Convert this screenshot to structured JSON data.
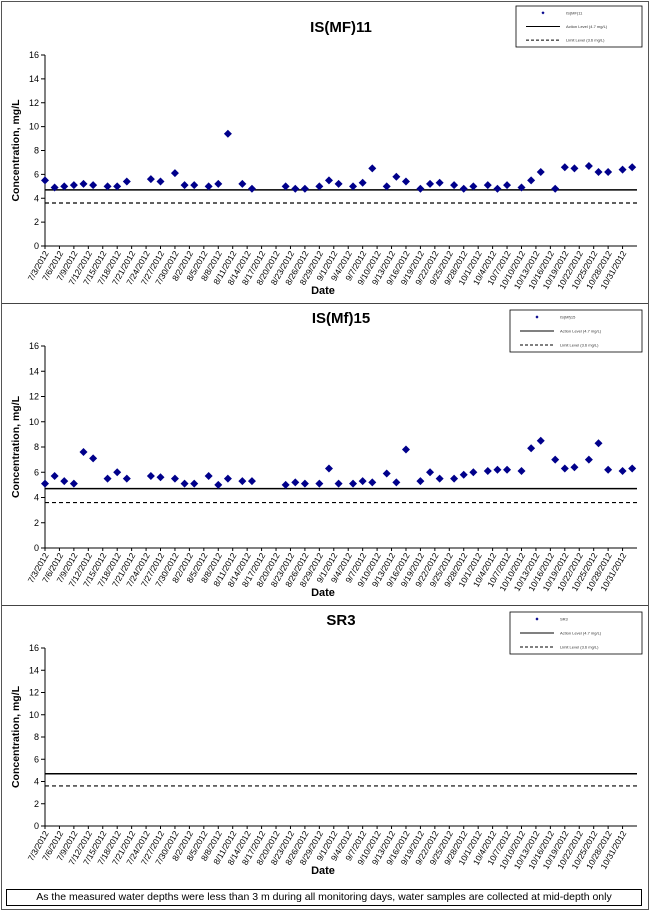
{
  "dates": [
    "7/3/2012",
    "7/6/2012",
    "7/9/2012",
    "7/12/2012",
    "7/15/2012",
    "7/18/2012",
    "7/21/2012",
    "7/24/2012",
    "7/27/2012",
    "7/30/2012",
    "8/2/2012",
    "8/5/2012",
    "8/8/2012",
    "8/11/2012",
    "8/14/2012",
    "8/17/2012",
    "8/20/2012",
    "8/23/2012",
    "8/26/2012",
    "8/29/2012",
    "9/1/2012",
    "9/4/2012",
    "9/7/2012",
    "9/10/2012",
    "9/13/2012",
    "9/16/2012",
    "9/19/2012",
    "9/22/2012",
    "9/25/2012",
    "9/28/2012",
    "10/1/2012",
    "10/4/2012",
    "10/7/2012",
    "10/10/2012",
    "10/13/2012",
    "10/16/2012",
    "10/19/2012",
    "10/22/2012",
    "10/25/2012",
    "10/28/2012",
    "10/31/2012"
  ],
  "note": "As the measured water depths were less than 3 m during all monitoring days, water samples are collected  at mid-depth only",
  "chart_data": [
    {
      "type": "scatter",
      "title": "IS(MF)11",
      "xlabel": "Date",
      "ylabel": "Concentration, mg/L",
      "ylim": [
        0,
        16
      ],
      "yticks": [
        0,
        2,
        4,
        6,
        8,
        10,
        12,
        14,
        16
      ],
      "legend": [
        "IS(MF)11",
        "Action Level (4.7 mg/L)",
        "Limit Level (3.6 mg/L)"
      ],
      "legend_position": "top-right",
      "reference_lines": [
        {
          "name": "Action Level (4.7 mg/L)",
          "value": 4.7,
          "style": "solid"
        },
        {
          "name": "Limit Level (3.6 mg/L)",
          "value": 3.6,
          "style": "dashed"
        }
      ],
      "series": [
        {
          "name": "IS(MF)11",
          "color": "#00008b",
          "points": [
            [
              "7/3/2012",
              5.5
            ],
            [
              "7/5/2012",
              4.9
            ],
            [
              "7/7/2012",
              5.0
            ],
            [
              "7/9/2012",
              5.1
            ],
            [
              "7/11/2012",
              5.2
            ],
            [
              "7/13/2012",
              5.1
            ],
            [
              "7/16/2012",
              5.0
            ],
            [
              "7/18/2012",
              5.0
            ],
            [
              "7/20/2012",
              5.4
            ],
            [
              "7/25/2012",
              5.6
            ],
            [
              "7/27/2012",
              5.4
            ],
            [
              "7/30/2012",
              6.1
            ],
            [
              "8/1/2012",
              5.1
            ],
            [
              "8/3/2012",
              5.1
            ],
            [
              "8/6/2012",
              5.0
            ],
            [
              "8/8/2012",
              5.2
            ],
            [
              "8/10/2012",
              9.4
            ],
            [
              "8/13/2012",
              5.2
            ],
            [
              "8/15/2012",
              4.8
            ],
            [
              "8/22/2012",
              5.0
            ],
            [
              "8/24/2012",
              4.8
            ],
            [
              "8/26/2012",
              4.8
            ],
            [
              "8/29/2012",
              5.0
            ],
            [
              "8/31/2012",
              5.5
            ],
            [
              "9/2/2012",
              5.2
            ],
            [
              "9/5/2012",
              5.0
            ],
            [
              "9/7/2012",
              5.3
            ],
            [
              "9/9/2012",
              6.5
            ],
            [
              "9/12/2012",
              5.0
            ],
            [
              "9/14/2012",
              5.8
            ],
            [
              "9/16/2012",
              5.4
            ],
            [
              "9/19/2012",
              4.8
            ],
            [
              "9/21/2012",
              5.2
            ],
            [
              "9/23/2012",
              5.3
            ],
            [
              "9/26/2012",
              5.1
            ],
            [
              "9/28/2012",
              4.8
            ],
            [
              "9/30/2012",
              5.0
            ],
            [
              "10/3/2012",
              5.1
            ],
            [
              "10/5/2012",
              4.8
            ],
            [
              "10/7/2012",
              5.1
            ],
            [
              "10/10/2012",
              4.9
            ],
            [
              "10/12/2012",
              5.5
            ],
            [
              "10/14/2012",
              6.2
            ],
            [
              "10/17/2012",
              4.8
            ],
            [
              "10/19/2012",
              6.6
            ],
            [
              "10/21/2012",
              6.5
            ],
            [
              "10/24/2012",
              6.7
            ],
            [
              "10/26/2012",
              6.2
            ],
            [
              "10/28/2012",
              6.2
            ],
            [
              "10/31/2012",
              6.4
            ],
            [
              "11/2/2012",
              6.6
            ]
          ]
        }
      ]
    },
    {
      "type": "scatter",
      "title": "IS(Mf)15",
      "xlabel": "Date",
      "ylabel": "Concentration, mg/L",
      "ylim": [
        0,
        16
      ],
      "yticks": [
        0,
        2,
        4,
        6,
        8,
        10,
        12,
        14,
        16
      ],
      "legend": [
        "IS(Mf)15",
        "Action Level (4.7 mg/L)",
        "Limit Level (3.6 mg/L)"
      ],
      "legend_position": "top-right",
      "reference_lines": [
        {
          "name": "Action Level (4.7 mg/L)",
          "value": 4.7,
          "style": "solid"
        },
        {
          "name": "Limit Level (3.6 mg/L)",
          "value": 3.6,
          "style": "dashed"
        }
      ],
      "series": [
        {
          "name": "IS(Mf)15",
          "color": "#00008b",
          "points": [
            [
              "7/3/2012",
              5.1
            ],
            [
              "7/5/2012",
              5.7
            ],
            [
              "7/7/2012",
              5.3
            ],
            [
              "7/9/2012",
              5.1
            ],
            [
              "7/11/2012",
              7.6
            ],
            [
              "7/13/2012",
              7.1
            ],
            [
              "7/16/2012",
              5.5
            ],
            [
              "7/18/2012",
              6.0
            ],
            [
              "7/20/2012",
              5.5
            ],
            [
              "7/25/2012",
              5.7
            ],
            [
              "7/27/2012",
              5.6
            ],
            [
              "7/30/2012",
              5.5
            ],
            [
              "8/1/2012",
              5.1
            ],
            [
              "8/3/2012",
              5.1
            ],
            [
              "8/6/2012",
              5.7
            ],
            [
              "8/8/2012",
              5.0
            ],
            [
              "8/10/2012",
              5.5
            ],
            [
              "8/13/2012",
              5.3
            ],
            [
              "8/15/2012",
              5.3
            ],
            [
              "8/22/2012",
              5.0
            ],
            [
              "8/24/2012",
              5.2
            ],
            [
              "8/26/2012",
              5.1
            ],
            [
              "8/29/2012",
              5.1
            ],
            [
              "8/31/2012",
              6.3
            ],
            [
              "9/2/2012",
              5.1
            ],
            [
              "9/5/2012",
              5.1
            ],
            [
              "9/7/2012",
              5.3
            ],
            [
              "9/9/2012",
              5.2
            ],
            [
              "9/12/2012",
              5.9
            ],
            [
              "9/14/2012",
              5.2
            ],
            [
              "9/16/2012",
              7.8
            ],
            [
              "9/19/2012",
              5.3
            ],
            [
              "9/21/2012",
              6.0
            ],
            [
              "9/23/2012",
              5.5
            ],
            [
              "9/26/2012",
              5.5
            ],
            [
              "9/28/2012",
              5.8
            ],
            [
              "9/30/2012",
              6.0
            ],
            [
              "10/3/2012",
              6.1
            ],
            [
              "10/5/2012",
              6.2
            ],
            [
              "10/7/2012",
              6.2
            ],
            [
              "10/10/2012",
              6.1
            ],
            [
              "10/12/2012",
              7.9
            ],
            [
              "10/14/2012",
              8.5
            ],
            [
              "10/17/2012",
              7.0
            ],
            [
              "10/19/2012",
              6.3
            ],
            [
              "10/21/2012",
              6.4
            ],
            [
              "10/24/2012",
              7.0
            ],
            [
              "10/26/2012",
              8.3
            ],
            [
              "10/28/2012",
              6.2
            ],
            [
              "10/31/2012",
              6.1
            ],
            [
              "11/2/2012",
              6.3
            ]
          ]
        }
      ]
    },
    {
      "type": "scatter",
      "title": "SR3",
      "xlabel": "Date",
      "ylabel": "Concentration, mg/L",
      "ylim": [
        0,
        16
      ],
      "yticks": [
        0,
        2,
        4,
        6,
        8,
        10,
        12,
        14,
        16
      ],
      "legend": [
        "SR3",
        "Action Level (4.7 mg/L)",
        "Limit Level (3.6 mg/L)"
      ],
      "legend_position": "top-right",
      "reference_lines": [
        {
          "name": "Action Level (4.7 mg/L)",
          "value": 4.7,
          "style": "solid"
        },
        {
          "name": "Limit Level (3.6 mg/L)",
          "value": 3.6,
          "style": "dashed"
        }
      ],
      "series": [
        {
          "name": "SR3",
          "color": "#00008b",
          "points": []
        }
      ]
    }
  ]
}
